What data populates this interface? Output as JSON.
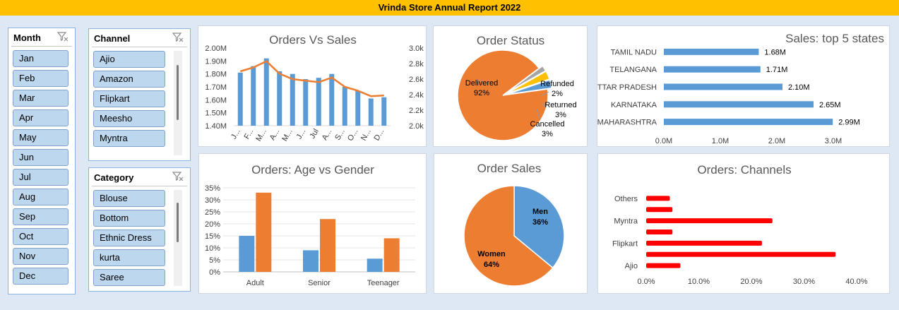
{
  "header": {
    "title": "Vrinda Store Annual Report 2022"
  },
  "colors": {
    "blue": "#5b9bd5",
    "orange": "#ed7d31",
    "gray": "#a5a5a5",
    "gold": "#ffc000",
    "red": "#ff0000",
    "header": "#ffc000"
  },
  "slicers": {
    "month": {
      "title": "Month",
      "items": [
        "Jan",
        "Feb",
        "Mar",
        "Apr",
        "May",
        "Jun",
        "Jul",
        "Aug",
        "Sep",
        "Oct",
        "Nov",
        "Dec"
      ]
    },
    "channel": {
      "title": "Channel",
      "items": [
        "Ajio",
        "Amazon",
        "Flipkart",
        "Meesho",
        "Myntra"
      ]
    },
    "category": {
      "title": "Category",
      "items": [
        "Blouse",
        "Bottom",
        "Ethnic Dress",
        "kurta",
        "Saree"
      ]
    }
  },
  "chart_data": [
    {
      "id": "orders_vs_sales",
      "type": "bar",
      "title": "Orders Vs Sales",
      "categories": [
        "Jan",
        "Feb",
        "Mar",
        "Apr",
        "May",
        "Jun",
        "Jul",
        "Aug",
        "Sep",
        "Oct",
        "Nov",
        "Dec"
      ],
      "category_tick_labels": [
        "J...",
        "F...",
        "M...",
        "A...",
        "M...",
        "J...",
        "Jul",
        "A...",
        "S...",
        "O...",
        "N...",
        "D..."
      ],
      "series": [
        {
          "type": "bar",
          "axis": "left",
          "values": [
            1.81,
            1.86,
            1.92,
            1.82,
            1.8,
            1.76,
            1.77,
            1.8,
            1.7,
            1.67,
            1.61,
            1.62
          ]
        },
        {
          "type": "line",
          "axis": "right",
          "values": [
            2700,
            2750,
            2830,
            2670,
            2600,
            2580,
            2560,
            2620,
            2500,
            2450,
            2380,
            2390
          ]
        }
      ],
      "ylim_left": [
        1.4,
        2.0
      ],
      "yticks_left": [
        "1.40M",
        "1.50M",
        "1.60M",
        "1.70M",
        "1.80M",
        "1.90M",
        "2.00M"
      ],
      "ylim_right": [
        2000,
        3000
      ],
      "yticks_right": [
        "2.0k",
        "2.2k",
        "2.4k",
        "2.6k",
        "2.8k",
        "3.0k"
      ]
    },
    {
      "id": "order_status",
      "type": "pie",
      "title": "Order Status",
      "slices": [
        {
          "label": "Delivered",
          "value": 92,
          "pct": "92%",
          "color": "#ed7d31"
        },
        {
          "label": "Refunded",
          "value": 2,
          "pct": "2%",
          "color": "#a5a5a5"
        },
        {
          "label": "Returned",
          "value": 3,
          "pct": "3%",
          "color": "#ffc000"
        },
        {
          "label": "Cancelled",
          "value": 3,
          "pct": "3%",
          "color": "#5b9bd5"
        }
      ]
    },
    {
      "id": "top5_states",
      "type": "bar",
      "orientation": "horizontal",
      "title": "Sales: top 5 states",
      "categories": [
        "TAMIL NADU",
        "TELANGANA",
        "UTTAR PRADESH",
        "KARNATAKA",
        "MAHARASHTRA"
      ],
      "values": [
        1.68,
        1.71,
        2.1,
        2.65,
        2.99
      ],
      "data_labels": [
        "1.68M",
        "1.71M",
        "2.10M",
        "2.65M",
        "2.99M"
      ],
      "xlim": [
        0,
        3.0
      ],
      "xticks": [
        "0.0M",
        "1.0M",
        "2.0M",
        "3.0M"
      ]
    },
    {
      "id": "age_vs_gender",
      "type": "bar",
      "title": "Orders: Age vs Gender",
      "categories": [
        "Adult",
        "Senior",
        "Teenager"
      ],
      "series": [
        {
          "values": [
            15,
            9,
            5.5
          ],
          "color": "#5b9bd5"
        },
        {
          "values": [
            33,
            22,
            14
          ],
          "color": "#ed7d31"
        }
      ],
      "ylim": [
        0,
        35
      ],
      "yticks": [
        "0%",
        "5%",
        "10%",
        "15%",
        "20%",
        "25%",
        "30%",
        "35%"
      ]
    },
    {
      "id": "order_sales",
      "type": "pie",
      "title": "Order Sales",
      "slices": [
        {
          "label": "Men",
          "value": 36,
          "pct": "36%",
          "color": "#5b9bd5"
        },
        {
          "label": "Women",
          "value": 64,
          "pct": "64%",
          "color": "#ed7d31"
        }
      ]
    },
    {
      "id": "channels",
      "type": "bar",
      "orientation": "horizontal",
      "title": "Orders: Channels",
      "categories": [
        "Ajio",
        "",
        "Flipkart",
        "",
        "Myntra",
        "",
        "Others"
      ],
      "values": [
        6.5,
        36,
        22,
        5,
        24,
        5,
        4.5
      ],
      "xlim": [
        0,
        40
      ],
      "xticks": [
        "0.0%",
        "10.0%",
        "20.0%",
        "30.0%",
        "40.0%"
      ]
    }
  ]
}
